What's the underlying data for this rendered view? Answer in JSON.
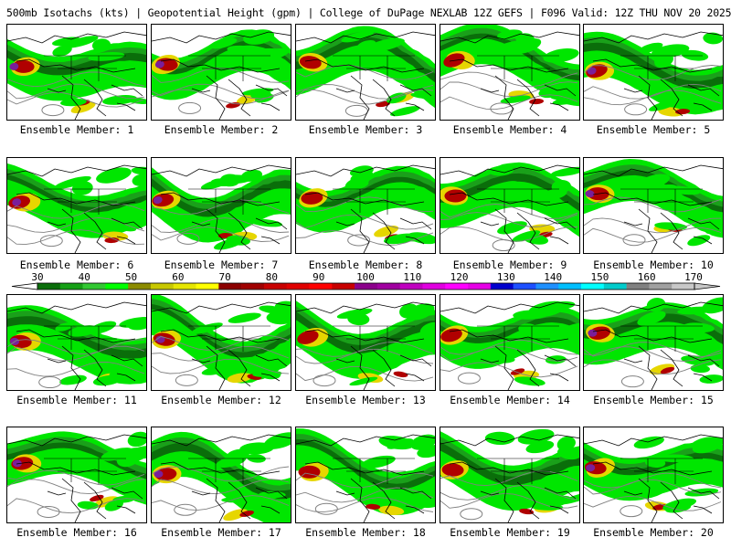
{
  "title": "500mb Isotachs (kts) | Geopotential Height (gpm) | College of DuPage NEXLAB   12Z GEFS | F096 Valid: 12Z THU NOV 20 2025",
  "member_label_prefix": "Ensemble Member: ",
  "members": [
    {
      "label": "Ensemble Member: 1"
    },
    {
      "label": "Ensemble Member: 2"
    },
    {
      "label": "Ensemble Member: 3"
    },
    {
      "label": "Ensemble Member: 4"
    },
    {
      "label": "Ensemble Member: 5"
    },
    {
      "label": "Ensemble Member: 6"
    },
    {
      "label": "Ensemble Member: 7"
    },
    {
      "label": "Ensemble Member: 8"
    },
    {
      "label": "Ensemble Member: 9"
    },
    {
      "label": "Ensemble Member: 10"
    },
    {
      "label": "Ensemble Member: 11"
    },
    {
      "label": "Ensemble Member: 12"
    },
    {
      "label": "Ensemble Member: 13"
    },
    {
      "label": "Ensemble Member: 14"
    },
    {
      "label": "Ensemble Member: 15"
    },
    {
      "label": "Ensemble Member: 16"
    },
    {
      "label": "Ensemble Member: 17"
    },
    {
      "label": "Ensemble Member: 18"
    },
    {
      "label": "Ensemble Member: 19"
    },
    {
      "label": "Ensemble Member: 20"
    }
  ],
  "colorbar": {
    "tick_labels": [
      "30",
      "40",
      "50",
      "60",
      "70",
      "80",
      "90",
      "100",
      "110",
      "120",
      "130",
      "140",
      "150",
      "160",
      "170"
    ],
    "colors": [
      "#0a6e0a",
      "#16a016",
      "#32c832",
      "#00ff00",
      "#8c8c00",
      "#c8c800",
      "#e6e600",
      "#ffff00",
      "#8b0000",
      "#a00000",
      "#c80000",
      "#e00000",
      "#ff0000",
      "#c80000",
      "#8b008b",
      "#a000a0",
      "#c000c0",
      "#e000e0",
      "#ff00ff",
      "#e600e6",
      "#0000cd",
      "#1e50ff",
      "#1e90ff",
      "#00bfff",
      "#00ffff",
      "#00cccc",
      "#808080",
      "#a0a0a0",
      "#c8c8c8"
    ]
  },
  "colors": {
    "jet_light": "#00e600",
    "jet_mid": "#1aa01a",
    "jet_dark": "#0a6e0a",
    "jet_yellow": "#e6d600",
    "jet_red": "#b00000",
    "jet_purple": "#7a1f9a",
    "map_lines": "#000000",
    "height_contour": "#808080"
  }
}
